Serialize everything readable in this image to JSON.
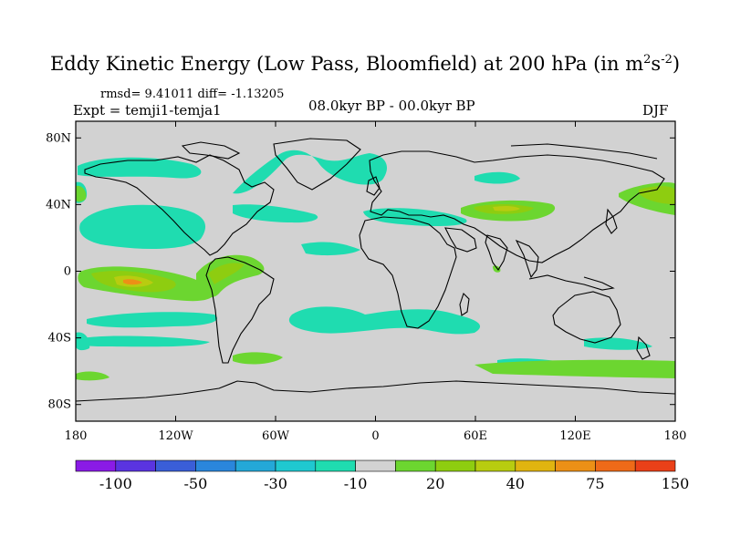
{
  "title": {
    "main": "Eddy Kinetic Energy (Low Pass, Bloomfield) at 200 hPa (in m",
    "sup1": "2",
    "mid": "s",
    "sup2": "-2",
    "close": ")"
  },
  "stats": "rmsd= 9.41011 diff= -1.13205",
  "experiment": "Expt = temji1-temja1",
  "period": "08.0kyr BP - 00.0kyr BP",
  "season": "DJF",
  "map": {
    "background": "#d2d2d2",
    "coast_color": "#000000",
    "lat_ticks": [
      {
        "value": 80,
        "label": "80N"
      },
      {
        "value": 40,
        "label": "40N"
      },
      {
        "value": 0,
        "label": "0"
      },
      {
        "value": -40,
        "label": "40S"
      },
      {
        "value": -80,
        "label": "80S"
      }
    ],
    "lon_ticks": [
      {
        "value": -180,
        "label": "180"
      },
      {
        "value": -120,
        "label": "120W"
      },
      {
        "value": -60,
        "label": "60W"
      },
      {
        "value": 0,
        "label": "0"
      },
      {
        "value": 60,
        "label": "60E"
      },
      {
        "value": 120,
        "label": "120E"
      },
      {
        "value": 180,
        "label": "180"
      }
    ]
  },
  "colorbar": {
    "colors": [
      "#8a1be6",
      "#5a34e0",
      "#3a5ed8",
      "#2a86dc",
      "#24a8d8",
      "#1fc8d0",
      "#1fdcb0",
      "#d2d2d2",
      "#6cd630",
      "#8ecd10",
      "#b8cc10",
      "#e0b410",
      "#ec9016",
      "#ee6a18",
      "#ea4018"
    ],
    "labels": [
      {
        "index": 1,
        "text": "-100"
      },
      {
        "index": 3,
        "text": "-50"
      },
      {
        "index": 5,
        "text": "-30"
      },
      {
        "index": 7,
        "text": "-10"
      },
      {
        "index": 9,
        "text": "20"
      },
      {
        "index": 11,
        "text": "40"
      },
      {
        "index": 13,
        "text": "75"
      },
      {
        "index": 15,
        "text": "150"
      }
    ]
  },
  "anomaly_colors": {
    "neg_light": "#1fdcb0",
    "neg_mid": "#1fc8d0",
    "pos_light": "#6cd630",
    "pos_mid": "#8ecd10",
    "pos_high": "#b8cc10",
    "pos_peak": "#e0b410",
    "pos_max": "#ec9016"
  }
}
